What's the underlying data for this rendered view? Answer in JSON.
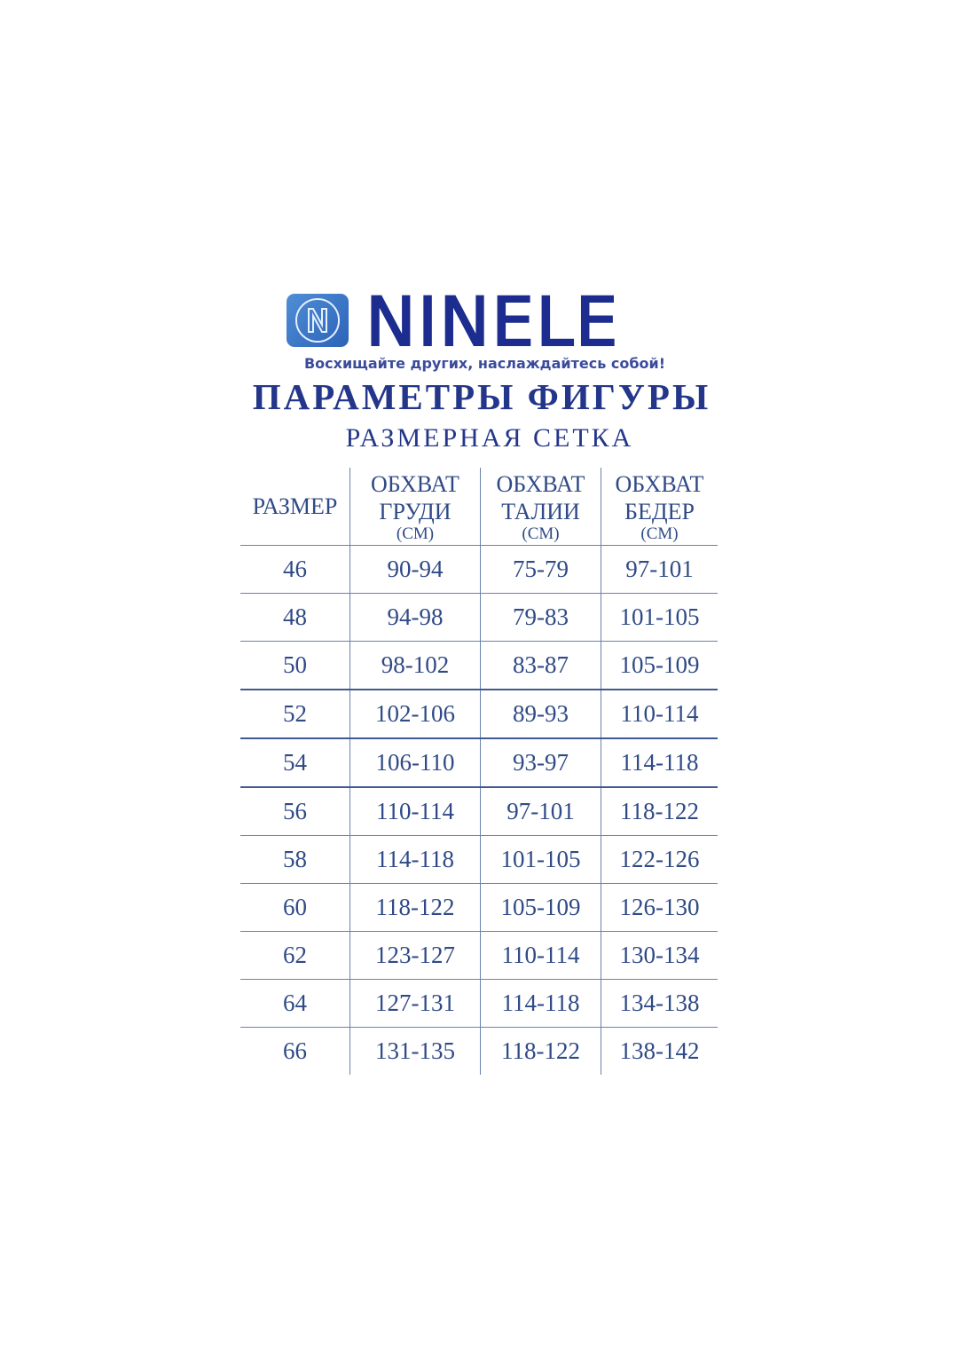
{
  "logo": {
    "brand": "NINELE",
    "tagline": "Восхищайте других, наслаждайтесь собой!",
    "icon": "n-circle-logo-icon",
    "brand_color": "#1c2c8f"
  },
  "title": "ПАРАМЕТРЫ ФИГУРЫ",
  "subtitle": "РАЗМЕРНАЯ СЕТКА",
  "table": {
    "headers": [
      {
        "line1": "РАЗМЕР",
        "line2": "",
        "unit": ""
      },
      {
        "line1": "ОБХВАТ",
        "line2": "ГРУДИ",
        "unit": "(СМ)"
      },
      {
        "line1": "ОБХВАТ",
        "line2": "ТАЛИИ",
        "unit": "(СМ)"
      },
      {
        "line1": "ОБХВАТ",
        "line2": "БЕДЕР",
        "unit": "(СМ)"
      }
    ],
    "rows": [
      [
        "46",
        "90-94",
        "75-79",
        "97-101"
      ],
      [
        "48",
        "94-98",
        "79-83",
        "101-105"
      ],
      [
        "50",
        "98-102",
        "83-87",
        "105-109"
      ],
      [
        "52",
        "102-106",
        "89-93",
        "110-114"
      ],
      [
        "54",
        "106-110",
        "93-97",
        "114-118"
      ],
      [
        "56",
        "110-114",
        "97-101",
        "118-122"
      ],
      [
        "58",
        "114-118",
        "101-105",
        "122-126"
      ],
      [
        "60",
        "118-122",
        "105-109",
        "126-130"
      ],
      [
        "62",
        "123-127",
        "110-114",
        "130-134"
      ],
      [
        "64",
        "127-131",
        "114-118",
        "134-138"
      ],
      [
        "66",
        "131-135",
        "118-122",
        "138-142"
      ]
    ],
    "text_color": "#2f4a86"
  }
}
